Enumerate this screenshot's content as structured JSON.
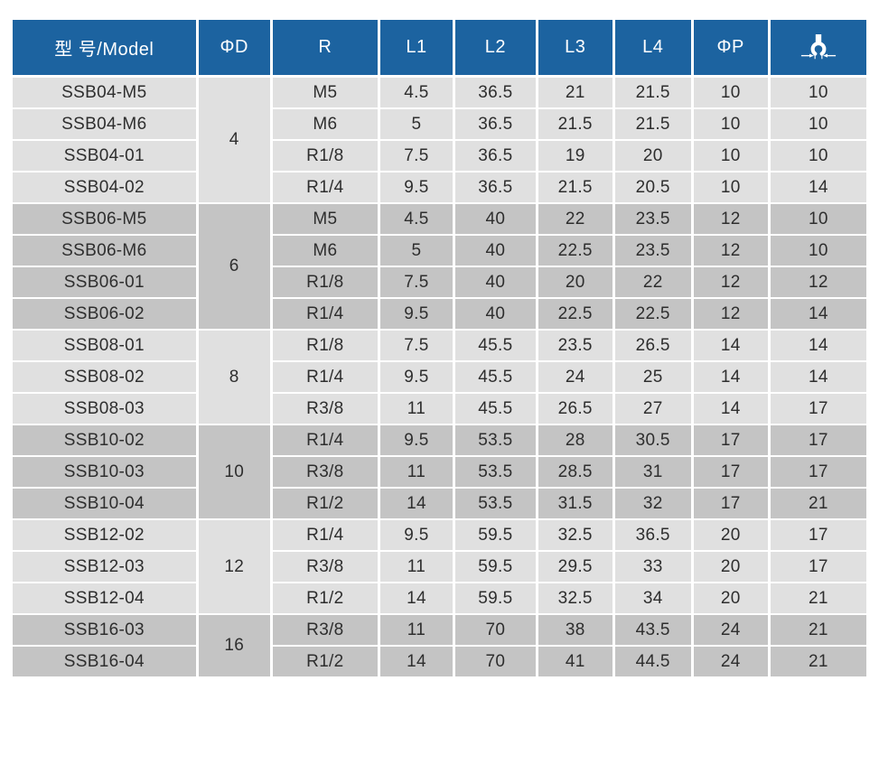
{
  "colors": {
    "header_bg": "#1c63a0",
    "header_text": "#ffffff",
    "row_light": "#e0e0e0",
    "row_dark": "#c4c4c4",
    "divider": "#ffffff",
    "cell_text": "#2e2e2e"
  },
  "table": {
    "columns": [
      {
        "key": "model",
        "label": "型 号/Model"
      },
      {
        "key": "phi_d",
        "label": "ΦD"
      },
      {
        "key": "r",
        "label": "R"
      },
      {
        "key": "l1",
        "label": "L1"
      },
      {
        "key": "l2",
        "label": "L2"
      },
      {
        "key": "l3",
        "label": "L3"
      },
      {
        "key": "l4",
        "label": "L4"
      },
      {
        "key": "phi_p",
        "label": "ΦP"
      },
      {
        "key": "wrench_size",
        "label": "",
        "icon": "wrench-size-icon"
      }
    ],
    "groups": [
      {
        "phi_d": "4",
        "shade": "light",
        "rows": [
          {
            "model": "SSB04-M5",
            "r": "M5",
            "l1": "4.5",
            "l2": "36.5",
            "l3": "21",
            "l4": "21.5",
            "phi_p": "10",
            "wrench_size": "10"
          },
          {
            "model": "SSB04-M6",
            "r": "M6",
            "l1": "5",
            "l2": "36.5",
            "l3": "21.5",
            "l4": "21.5",
            "phi_p": "10",
            "wrench_size": "10"
          },
          {
            "model": "SSB04-01",
            "r": "R1/8",
            "l1": "7.5",
            "l2": "36.5",
            "l3": "19",
            "l4": "20",
            "phi_p": "10",
            "wrench_size": "10"
          },
          {
            "model": "SSB04-02",
            "r": "R1/4",
            "l1": "9.5",
            "l2": "36.5",
            "l3": "21.5",
            "l4": "20.5",
            "phi_p": "10",
            "wrench_size": "14"
          }
        ]
      },
      {
        "phi_d": "6",
        "shade": "dark",
        "rows": [
          {
            "model": "SSB06-M5",
            "r": "M5",
            "l1": "4.5",
            "l2": "40",
            "l3": "22",
            "l4": "23.5",
            "phi_p": "12",
            "wrench_size": "10"
          },
          {
            "model": "SSB06-M6",
            "r": "M6",
            "l1": "5",
            "l2": "40",
            "l3": "22.5",
            "l4": "23.5",
            "phi_p": "12",
            "wrench_size": "10"
          },
          {
            "model": "SSB06-01",
            "r": "R1/8",
            "l1": "7.5",
            "l2": "40",
            "l3": "20",
            "l4": "22",
            "phi_p": "12",
            "wrench_size": "12"
          },
          {
            "model": "SSB06-02",
            "r": "R1/4",
            "l1": "9.5",
            "l2": "40",
            "l3": "22.5",
            "l4": "22.5",
            "phi_p": "12",
            "wrench_size": "14"
          }
        ]
      },
      {
        "phi_d": "8",
        "shade": "light",
        "rows": [
          {
            "model": "SSB08-01",
            "r": "R1/8",
            "l1": "7.5",
            "l2": "45.5",
            "l3": "23.5",
            "l4": "26.5",
            "phi_p": "14",
            "wrench_size": "14"
          },
          {
            "model": "SSB08-02",
            "r": "R1/4",
            "l1": "9.5",
            "l2": "45.5",
            "l3": "24",
            "l4": "25",
            "phi_p": "14",
            "wrench_size": "14"
          },
          {
            "model": "SSB08-03",
            "r": "R3/8",
            "l1": "11",
            "l2": "45.5",
            "l3": "26.5",
            "l4": "27",
            "phi_p": "14",
            "wrench_size": "17"
          }
        ]
      },
      {
        "phi_d": "10",
        "shade": "dark",
        "rows": [
          {
            "model": "SSB10-02",
            "r": "R1/4",
            "l1": "9.5",
            "l2": "53.5",
            "l3": "28",
            "l4": "30.5",
            "phi_p": "17",
            "wrench_size": "17"
          },
          {
            "model": "SSB10-03",
            "r": "R3/8",
            "l1": "11",
            "l2": "53.5",
            "l3": "28.5",
            "l4": "31",
            "phi_p": "17",
            "wrench_size": "17"
          },
          {
            "model": "SSB10-04",
            "r": "R1/2",
            "l1": "14",
            "l2": "53.5",
            "l3": "31.5",
            "l4": "32",
            "phi_p": "17",
            "wrench_size": "21"
          }
        ]
      },
      {
        "phi_d": "12",
        "shade": "light",
        "rows": [
          {
            "model": "SSB12-02",
            "r": "R1/4",
            "l1": "9.5",
            "l2": "59.5",
            "l3": "32.5",
            "l4": "36.5",
            "phi_p": "20",
            "wrench_size": "17"
          },
          {
            "model": "SSB12-03",
            "r": "R3/8",
            "l1": "11",
            "l2": "59.5",
            "l3": "29.5",
            "l4": "33",
            "phi_p": "20",
            "wrench_size": "17"
          },
          {
            "model": "SSB12-04",
            "r": "R1/2",
            "l1": "14",
            "l2": "59.5",
            "l3": "32.5",
            "l4": "34",
            "phi_p": "20",
            "wrench_size": "21"
          }
        ]
      },
      {
        "phi_d": "16",
        "shade": "dark",
        "rows": [
          {
            "model": "SSB16-03",
            "r": "R3/8",
            "l1": "11",
            "l2": "70",
            "l3": "38",
            "l4": "43.5",
            "phi_p": "24",
            "wrench_size": "21"
          },
          {
            "model": "SSB16-04",
            "r": "R1/2",
            "l1": "14",
            "l2": "70",
            "l3": "41",
            "l4": "44.5",
            "phi_p": "24",
            "wrench_size": "21"
          }
        ]
      }
    ]
  }
}
